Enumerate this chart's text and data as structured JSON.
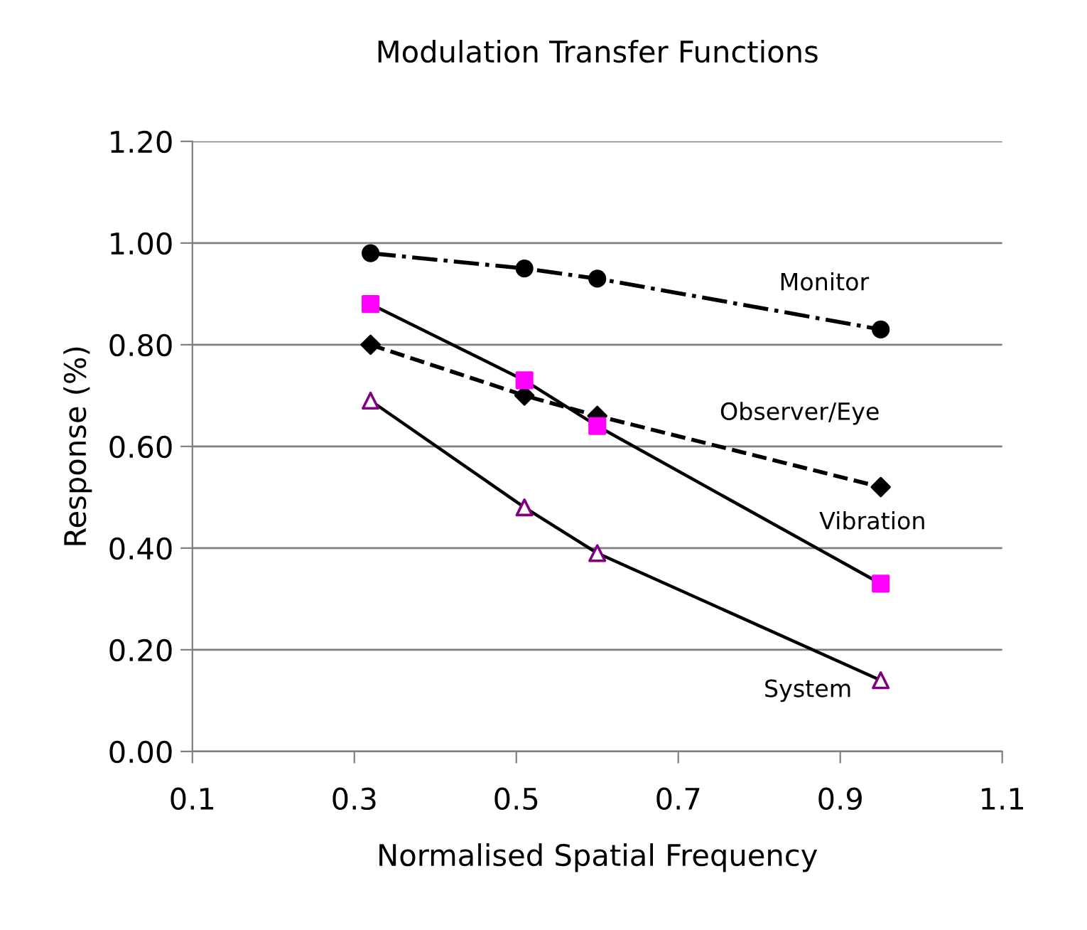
{
  "chart_data": {
    "type": "line",
    "title": "Modulation Transfer Functions",
    "xlabel": "Normalised Spatial Frequency",
    "ylabel": "Response (%)",
    "x": [
      0.32,
      0.51,
      0.6,
      0.95
    ],
    "series": [
      {
        "name": "Monitor",
        "color": "#000000",
        "marker": "circle",
        "line_style": "dashdot",
        "values": [
          0.98,
          0.95,
          0.93,
          0.83
        ]
      },
      {
        "name": "Observer/Eye",
        "color": "#000000",
        "marker": "diamond",
        "line_style": "dashed",
        "values": [
          0.8,
          0.7,
          0.66,
          0.52
        ]
      },
      {
        "name": "Vibration",
        "color": "#ff00ff",
        "marker": "square",
        "line_style": "solid",
        "values": [
          0.88,
          0.73,
          0.64,
          0.33
        ]
      },
      {
        "name": "System",
        "color": "#800080",
        "marker": "triangle",
        "line_style": "solid",
        "values": [
          0.69,
          0.48,
          0.39,
          0.14
        ]
      }
    ],
    "xlim": [
      0.1,
      1.1
    ],
    "xticks": [
      0.1,
      0.3,
      0.5,
      0.7,
      0.9,
      1.1
    ],
    "ylim": [
      0,
      1.2
    ],
    "yticks": [
      {
        "value": 0,
        "label": "0.00"
      },
      {
        "value": 0.2,
        "label": "0.20"
      },
      {
        "value": 0.4,
        "label": "0.40"
      },
      {
        "value": 0.6,
        "label": "0.60"
      },
      {
        "value": 0.8,
        "label": "0.80"
      },
      {
        "value": 1.0,
        "label": "1.00"
      },
      {
        "value": 1.2,
        "label": "1.20"
      }
    ],
    "grid": "y",
    "legend": false
  }
}
